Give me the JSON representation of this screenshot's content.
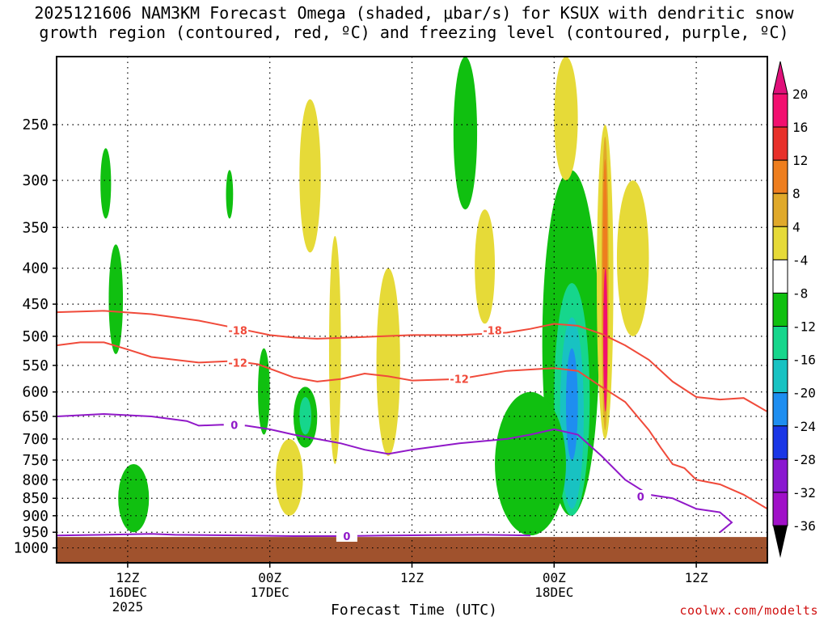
{
  "chart_data": {
    "type": "heatmap",
    "title_line1": "2025121606 NAM3KM Forecast Omega (shaded, μbar/s) for KSUX with dendritic snow",
    "title_line2": "growth region (contoured, red, ºC) and freezing level (contoured, purple, ºC)",
    "xlabel": "Forecast Time (UTC)",
    "credit": "coolwx.com/modelts",
    "y_axis": {
      "type": "pressure (hPa)",
      "ticks": [
        "250",
        "300",
        "350",
        "400",
        "450",
        "500",
        "550",
        "600",
        "650",
        "700",
        "750",
        "800",
        "850",
        "900",
        "950",
        "1000"
      ],
      "range": [
        200,
        1050
      ],
      "scale": "log",
      "grid": true
    },
    "x_axis": {
      "range_hours": [
        0,
        60
      ],
      "ticks": [
        {
          "hour": 6,
          "line1": "12Z",
          "line2": "16DEC",
          "line3": "2025"
        },
        {
          "hour": 18,
          "line1": "00Z",
          "line2": "17DEC",
          "line3": ""
        },
        {
          "hour": 30,
          "line1": "12Z",
          "line2": "",
          "line3": ""
        },
        {
          "hour": 42,
          "line1": "00Z",
          "line2": "18DEC",
          "line3": ""
        },
        {
          "hour": 54,
          "line1": "12Z",
          "line2": "",
          "line3": ""
        }
      ],
      "grid": true
    },
    "colorbar": {
      "labels": [
        "20",
        "16",
        "12",
        "8",
        "4",
        "-4",
        "-8",
        "-12",
        "-16",
        "-20",
        "-24",
        "-28",
        "-32",
        "-36"
      ],
      "colors": [
        "#f20f6f",
        "#e8302a",
        "#ee7e1e",
        "#e0a92a",
        "#e6da38",
        "#ffffff",
        "#10c010",
        "#16d68c",
        "#18c2c2",
        "#1e8ef0",
        "#1a36e6",
        "#8a18d0",
        "#a010c8",
        "#a8a8a8"
      ],
      "arrow_top_color": "#e0107a",
      "arrow_bottom_color": "#000000"
    },
    "contours": [
      {
        "label": "-18",
        "color": "#f04a3a",
        "kind": "dendritic",
        "points": [
          [
            0,
            462
          ],
          [
            4,
            460
          ],
          [
            8,
            465
          ],
          [
            12,
            475
          ],
          [
            16,
            490
          ],
          [
            18,
            498
          ],
          [
            20,
            502
          ],
          [
            22,
            504
          ],
          [
            26,
            501
          ],
          [
            30,
            498
          ],
          [
            34,
            498
          ],
          [
            38,
            494
          ],
          [
            40,
            488
          ],
          [
            42,
            480
          ],
          [
            44,
            483
          ],
          [
            46,
            496
          ],
          [
            48,
            515
          ],
          [
            50,
            540
          ],
          [
            52,
            580
          ],
          [
            54,
            610
          ],
          [
            56,
            615
          ],
          [
            58,
            612
          ],
          [
            60,
            640
          ]
        ]
      },
      {
        "label": "-12",
        "color": "#f04a3a",
        "kind": "dendritic",
        "points": [
          [
            0,
            515
          ],
          [
            2,
            510
          ],
          [
            4,
            510
          ],
          [
            6,
            522
          ],
          [
            8,
            535
          ],
          [
            12,
            545
          ],
          [
            15,
            542
          ],
          [
            17,
            548
          ],
          [
            20,
            572
          ],
          [
            22,
            580
          ],
          [
            24,
            575
          ],
          [
            26,
            565
          ],
          [
            28,
            570
          ],
          [
            30,
            578
          ],
          [
            34,
            575
          ],
          [
            38,
            560
          ],
          [
            42,
            555
          ],
          [
            44,
            560
          ],
          [
            46,
            590
          ],
          [
            48,
            620
          ],
          [
            50,
            680
          ],
          [
            51,
            720
          ],
          [
            52,
            760
          ],
          [
            53,
            770
          ],
          [
            54,
            800
          ],
          [
            56,
            812
          ],
          [
            58,
            840
          ],
          [
            60,
            880
          ]
        ]
      },
      {
        "label": "0",
        "color": "#9018c8",
        "kind": "freezing",
        "points": [
          [
            0,
            650
          ],
          [
            4,
            645
          ],
          [
            8,
            650
          ],
          [
            11,
            660
          ],
          [
            12,
            670
          ],
          [
            14,
            668
          ],
          [
            16,
            670
          ],
          [
            18,
            678
          ],
          [
            20,
            690
          ],
          [
            22,
            700
          ],
          [
            24,
            710
          ],
          [
            26,
            725
          ],
          [
            28,
            735
          ],
          [
            30,
            725
          ],
          [
            34,
            710
          ],
          [
            38,
            700
          ],
          [
            40,
            690
          ],
          [
            42,
            678
          ],
          [
            44,
            690
          ],
          [
            46,
            740
          ],
          [
            48,
            800
          ],
          [
            50,
            840
          ],
          [
            52,
            850
          ],
          [
            54,
            880
          ],
          [
            56,
            890
          ],
          [
            57,
            920
          ],
          [
            56,
            950
          ]
        ]
      },
      {
        "label": "0",
        "color": "#9018c8",
        "kind": "freezing",
        "points": [
          [
            0,
            960
          ],
          [
            4,
            958
          ],
          [
            8,
            955
          ],
          [
            10,
            958
          ],
          [
            16,
            960
          ],
          [
            20,
            962
          ],
          [
            24,
            962
          ],
          [
            28,
            960
          ],
          [
            36,
            958
          ],
          [
            40,
            960
          ]
        ]
      }
    ],
    "shaded_regions": [
      {
        "value": -8,
        "t": [
          4.4,
          5.6
        ],
        "p": [
          370,
          530
        ]
      },
      {
        "value": -8,
        "t": [
          3.7,
          4.6
        ],
        "p": [
          270,
          340
        ]
      },
      {
        "value": -8,
        "t": [
          14.3,
          14.9
        ],
        "p": [
          290,
          340
        ]
      },
      {
        "value": -8,
        "t": [
          17.0,
          18.0
        ],
        "p": [
          520,
          690
        ]
      },
      {
        "value": -8,
        "t": [
          20.0,
          22.0
        ],
        "p": [
          590,
          720
        ]
      },
      {
        "value": -12,
        "t": [
          20.5,
          21.5
        ],
        "p": [
          610,
          690
        ]
      },
      {
        "value": -8,
        "t": [
          41.0,
          45.8
        ],
        "p": [
          290,
          900
        ]
      },
      {
        "value": -12,
        "t": [
          42.0,
          45.0
        ],
        "p": [
          420,
          900
        ]
      },
      {
        "value": -16,
        "t": [
          42.5,
          44.5
        ],
        "p": [
          470,
          880
        ]
      },
      {
        "value": -20,
        "t": [
          43.0,
          44.0
        ],
        "p": [
          520,
          750
        ]
      },
      {
        "value": -8,
        "t": [
          37.0,
          43.0
        ],
        "p": [
          600,
          960
        ]
      },
      {
        "value": 4,
        "t": [
          45.6,
          47.0
        ],
        "p": [
          250,
          700
        ]
      },
      {
        "value": 8,
        "t": [
          46.0,
          46.6
        ],
        "p": [
          260,
          680
        ]
      },
      {
        "value": 12,
        "t": [
          46.1,
          46.5
        ],
        "p": [
          280,
          600
        ]
      },
      {
        "value": 20,
        "t": [
          46.15,
          46.5
        ],
        "p": [
          400,
          640
        ]
      },
      {
        "value": 4,
        "t": [
          23.0,
          24.0
        ],
        "p": [
          360,
          760
        ]
      },
      {
        "value": 4,
        "t": [
          35.3,
          37.0
        ],
        "p": [
          330,
          480
        ]
      },
      {
        "value": 4,
        "t": [
          20.5,
          22.3
        ],
        "p": [
          230,
          380
        ]
      },
      {
        "value": 4,
        "t": [
          27.0,
          29.0
        ],
        "p": [
          400,
          740
        ]
      },
      {
        "value": 4,
        "t": [
          18.5,
          20.8
        ],
        "p": [
          700,
          900
        ]
      },
      {
        "value": -8,
        "t": [
          33.5,
          35.5
        ],
        "p": [
          200,
          330
        ]
      },
      {
        "value": -8,
        "t": [
          5.2,
          7.8
        ],
        "p": [
          760,
          950
        ]
      },
      {
        "value": 4,
        "t": [
          42.0,
          44.0
        ],
        "p": [
          200,
          300
        ]
      },
      {
        "value": 4,
        "t": [
          47.3,
          50.0
        ],
        "p": [
          300,
          500
        ]
      }
    ],
    "terrain_color": "#a0522d"
  }
}
